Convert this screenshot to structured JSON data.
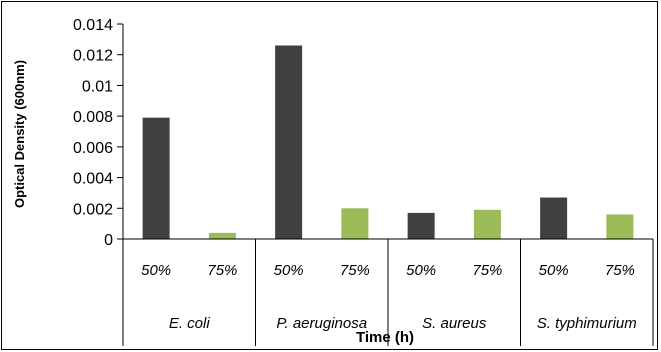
{
  "chart_data": {
    "type": "bar",
    "title": "",
    "xlabel": "Time (h)",
    "ylabel": "Optical Density (600nm)",
    "ylim": [
      0,
      0.014
    ],
    "yticks": [
      "0",
      "0.002",
      "0.004",
      "0.006",
      "0.008",
      "0.01",
      "0.012",
      "0.014"
    ],
    "groups": [
      "E. coli",
      "P. aeruginosa",
      "S. aureus",
      "S. typhimurium"
    ],
    "categories": [
      "50%",
      "75%",
      "50%",
      "75%",
      "50%",
      "75%",
      "50%",
      "75%"
    ],
    "values": [
      0.0079,
      0.0004,
      0.0126,
      0.002,
      0.0017,
      0.0019,
      0.0027,
      0.0016
    ],
    "colors": [
      "#404040",
      "#9bbb59",
      "#404040",
      "#9bbb59",
      "#404040",
      "#9bbb59",
      "#404040",
      "#9bbb59"
    ],
    "grid": false,
    "legend": "none"
  }
}
